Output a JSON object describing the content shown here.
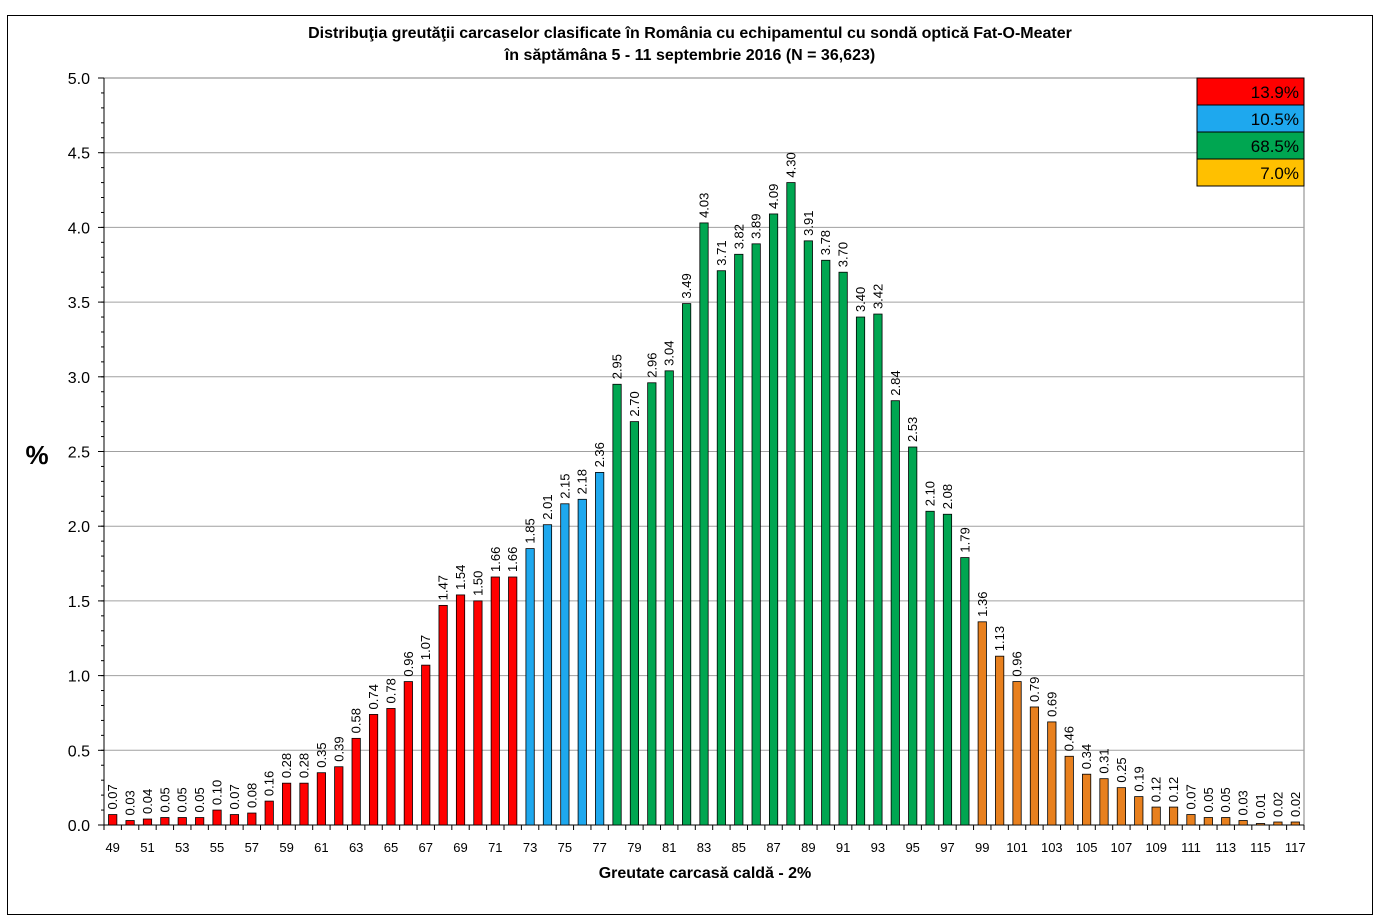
{
  "chart_data": {
    "type": "bar",
    "title": "Distribuţia greutăţii carcaselor clasificate în România cu echipamentul cu sondă optică Fat-O-Meater",
    "subtitle": "în săptămâna  5 - 11 septembrie 2016  (N = 36,623)",
    "xlabel": "Greutate carcasă caldă - 2%",
    "ylabel": "%",
    "ylim": [
      0,
      5.0
    ],
    "yticks": [
      "0.0",
      "0.5",
      "1.0",
      "1.5",
      "2.0",
      "2.5",
      "3.0",
      "3.5",
      "4.0",
      "4.5",
      "5.0"
    ],
    "grid": true,
    "categories": [
      49,
      50,
      51,
      52,
      53,
      54,
      55,
      56,
      57,
      58,
      59,
      60,
      61,
      62,
      63,
      64,
      65,
      66,
      67,
      68,
      69,
      70,
      71,
      72,
      73,
      74,
      75,
      76,
      77,
      78,
      79,
      80,
      81,
      82,
      83,
      84,
      85,
      86,
      87,
      88,
      89,
      90,
      91,
      92,
      93,
      94,
      95,
      96,
      97,
      98,
      99,
      100,
      101,
      102,
      103,
      104,
      105,
      106,
      107,
      108,
      109,
      110,
      111,
      112,
      113,
      114,
      115,
      116,
      117
    ],
    "values": [
      0.07,
      0.03,
      0.04,
      0.05,
      0.05,
      0.05,
      0.1,
      0.07,
      0.08,
      0.16,
      0.28,
      0.28,
      0.35,
      0.39,
      0.58,
      0.74,
      0.78,
      0.96,
      1.07,
      1.47,
      1.54,
      1.5,
      1.66,
      1.66,
      1.85,
      2.01,
      2.15,
      2.18,
      2.36,
      2.95,
      2.7,
      2.96,
      3.04,
      3.49,
      4.03,
      3.71,
      3.82,
      3.89,
      4.09,
      4.3,
      3.91,
      3.78,
      3.7,
      3.4,
      3.42,
      2.84,
      2.53,
      2.1,
      2.08,
      1.79,
      1.36,
      1.13,
      0.96,
      0.79,
      0.69,
      0.46,
      0.34,
      0.31,
      0.25,
      0.19,
      0.12,
      0.12,
      0.07,
      0.05,
      0.05,
      0.03,
      0.01,
      0.02,
      0.02
    ],
    "labels": [
      "0.07",
      "0.03",
      "0.04",
      "0.05",
      "0.05",
      "0.05",
      "0.10",
      "0.07",
      "0.08",
      "0.16",
      "0.28",
      "0.28",
      "0.35",
      "0.39",
      "0.58",
      "0.74",
      "0.78",
      "0.96",
      "1.07",
      "1.47",
      "1.54",
      "1.50",
      "1.66",
      "1.66",
      "1.85",
      "2.01",
      "2.15",
      "2.18",
      "2.36",
      "2.95",
      "2.70",
      "2.96",
      "3.04",
      "3.49",
      "4.03",
      "3.71",
      "3.82",
      "3.89",
      "4.09",
      "4.30",
      "3.91",
      "3.78",
      "3.70",
      "3.40",
      "3.42",
      "2.84",
      "2.53",
      "2.10",
      "2.08",
      "1.79",
      "1.36",
      "1.13",
      "0.96",
      "0.79",
      "0.69",
      "0.46",
      "0.34",
      "0.31",
      "0.25",
      "0.19",
      "0.12",
      "0.12",
      "0.07",
      "0.05",
      "0.05",
      "0.03",
      "0.01",
      "0.02",
      "0.02"
    ],
    "segments": [
      {
        "from": 49,
        "to": 72,
        "color": "#ff0000"
      },
      {
        "from": 73,
        "to": 77,
        "color": "#1ea8ee"
      },
      {
        "from": 78,
        "to": 98,
        "color": "#00a651"
      },
      {
        "from": 99,
        "to": 117,
        "color": "#e8801e"
      }
    ],
    "legend": {
      "placement": "top-right",
      "entries": [
        {
          "label": "13.9%",
          "color": "#ff0000"
        },
        {
          "label": "10.5%",
          "color": "#1ea8ee"
        },
        {
          "label": "68.5%",
          "color": "#00a651"
        },
        {
          "label": "7.0%",
          "color": "#ffc000"
        }
      ]
    }
  }
}
